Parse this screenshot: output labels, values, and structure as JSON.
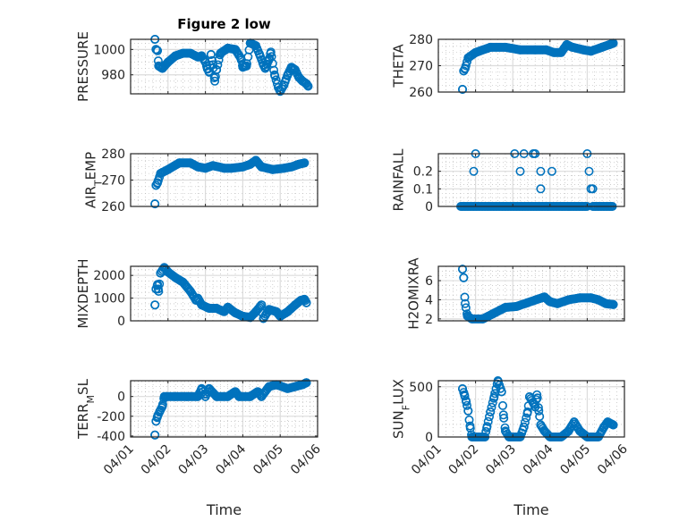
{
  "figure_title": "Figure 2 low",
  "marker_color": "#0072BD",
  "chart_data": [
    {
      "type": "scatter",
      "title": "Figure 2 low",
      "ylabel": "PRESSURE",
      "ylabel_sub": "",
      "xlabel": "",
      "x_ticks": [
        "04/01",
        "04/02",
        "04/03",
        "04/04",
        "04/05",
        "04/06"
      ],
      "show_x_ticklabels": false,
      "ylim": [
        965,
        1008
      ],
      "y_ticks": [
        980,
        1000
      ],
      "grid": true,
      "minor_grid": true,
      "points": [
        [
          0.65,
          1008
        ],
        [
          0.68,
          1000
        ],
        [
          0.72,
          999
        ],
        [
          0.75,
          987
        ],
        [
          0.85,
          985
        ],
        [
          1.0,
          990
        ],
        [
          1.2,
          995
        ],
        [
          1.4,
          997
        ],
        [
          1.6,
          997
        ],
        [
          1.8,
          994
        ],
        [
          1.9,
          995
        ],
        [
          2.0,
          990
        ],
        [
          2.05,
          985
        ],
        [
          2.1,
          982
        ],
        [
          2.15,
          996
        ],
        [
          2.2,
          988
        ],
        [
          2.25,
          975
        ],
        [
          2.3,
          984
        ],
        [
          2.4,
          997
        ],
        [
          2.6,
          1001
        ],
        [
          2.8,
          1000
        ],
        [
          2.95,
          993
        ],
        [
          3.0,
          986
        ],
        [
          3.1,
          987
        ],
        [
          3.2,
          1005
        ],
        [
          3.35,
          1003
        ],
        [
          3.45,
          996
        ],
        [
          3.55,
          988
        ],
        [
          3.6,
          985
        ],
        [
          3.7,
          992
        ],
        [
          3.75,
          998
        ],
        [
          3.85,
          980
        ],
        [
          3.95,
          970
        ],
        [
          4.0,
          967
        ],
        [
          4.1,
          972
        ],
        [
          4.2,
          980
        ],
        [
          4.3,
          986
        ],
        [
          4.4,
          984
        ],
        [
          4.5,
          978
        ],
        [
          4.6,
          975
        ],
        [
          4.7,
          973
        ],
        [
          4.75,
          971
        ]
      ]
    },
    {
      "type": "scatter",
      "ylabel": "THETA",
      "ylabel_sub": "",
      "xlabel": "",
      "x_ticks": [
        "04/01",
        "04/02",
        "04/03",
        "04/04",
        "04/05",
        "04/06"
      ],
      "show_x_ticklabels": false,
      "ylim": [
        260,
        280
      ],
      "y_ticks": [
        260,
        270,
        280
      ],
      "grid": true,
      "minor_grid": true,
      "points": [
        [
          0.65,
          261
        ],
        [
          0.68,
          268
        ],
        [
          0.72,
          269
        ],
        [
          0.8,
          273
        ],
        [
          1.0,
          275
        ],
        [
          1.4,
          277
        ],
        [
          1.8,
          277
        ],
        [
          2.2,
          276
        ],
        [
          2.6,
          276
        ],
        [
          2.9,
          276
        ],
        [
          3.1,
          275
        ],
        [
          3.3,
          275
        ],
        [
          3.45,
          278
        ],
        [
          3.6,
          277
        ],
        [
          3.9,
          276
        ],
        [
          4.1,
          275.5
        ],
        [
          4.4,
          277
        ],
        [
          4.6,
          278
        ],
        [
          4.7,
          278.5
        ]
      ]
    },
    {
      "type": "scatter",
      "ylabel": "AIR",
      "ylabel_sub": "T",
      "ylabel_rest": "EMP",
      "xlabel": "",
      "x_ticks": [
        "04/01",
        "04/02",
        "04/03",
        "04/04",
        "04/05",
        "04/06"
      ],
      "show_x_ticklabels": false,
      "ylim": [
        260,
        280
      ],
      "y_ticks": [
        260,
        270,
        280
      ],
      "grid": true,
      "minor_grid": true,
      "points": [
        [
          0.65,
          261
        ],
        [
          0.68,
          268
        ],
        [
          0.72,
          269
        ],
        [
          0.8,
          272.5
        ],
        [
          1.0,
          274
        ],
        [
          1.3,
          276.5
        ],
        [
          1.6,
          276.5
        ],
        [
          1.8,
          275
        ],
        [
          2.0,
          274.5
        ],
        [
          2.2,
          275.5
        ],
        [
          2.5,
          274.5
        ],
        [
          2.7,
          274.5
        ],
        [
          3.0,
          275
        ],
        [
          3.2,
          276
        ],
        [
          3.35,
          277.5
        ],
        [
          3.5,
          275
        ],
        [
          3.8,
          274
        ],
        [
          4.1,
          274.5
        ],
        [
          4.3,
          275
        ],
        [
          4.5,
          276
        ],
        [
          4.65,
          276.5
        ]
      ]
    },
    {
      "type": "scatter",
      "ylabel": "RAINFALL",
      "ylabel_sub": "",
      "xlabel": "",
      "x_ticks": [
        "04/01",
        "04/02",
        "04/03",
        "04/04",
        "04/05",
        "04/06"
      ],
      "show_x_ticklabels": false,
      "ylim": [
        0,
        0.3
      ],
      "y_ticks": [
        0,
        0.1,
        0.2
      ],
      "grid": true,
      "minor_grid": true,
      "points": [
        [
          1.0,
          0.3
        ],
        [
          0.95,
          0.2
        ],
        [
          2.05,
          0.3
        ],
        [
          2.3,
          0.3
        ],
        [
          2.2,
          0.2
        ],
        [
          2.55,
          0.3
        ],
        [
          2.6,
          0.3
        ],
        [
          2.75,
          0.2
        ],
        [
          2.75,
          0.1
        ],
        [
          3.05,
          0.2
        ],
        [
          4.0,
          0.3
        ],
        [
          4.05,
          0.2
        ],
        [
          4.1,
          0.1
        ],
        [
          4.15,
          0.1
        ]
      ],
      "zero_segments": [
        [
          0.6,
          4.0
        ],
        [
          4.15,
          4.7
        ]
      ]
    },
    {
      "type": "scatter",
      "ylabel": "MIXDEPTH",
      "ylabel_sub": "",
      "xlabel": "",
      "x_ticks": [
        "04/01",
        "04/02",
        "04/03",
        "04/04",
        "04/05",
        "04/06"
      ],
      "show_x_ticklabels": false,
      "ylim": [
        0,
        2400
      ],
      "y_ticks": [
        0,
        1000,
        2000
      ],
      "grid": true,
      "minor_grid": true,
      "points": [
        [
          0.65,
          700
        ],
        [
          0.68,
          1400
        ],
        [
          0.72,
          1600
        ],
        [
          0.75,
          1300
        ],
        [
          0.8,
          2100
        ],
        [
          0.9,
          2350
        ],
        [
          1.0,
          2150
        ],
        [
          1.2,
          1900
        ],
        [
          1.4,
          1700
        ],
        [
          1.6,
          1300
        ],
        [
          1.75,
          900
        ],
        [
          1.8,
          1000
        ],
        [
          1.9,
          700
        ],
        [
          2.1,
          550
        ],
        [
          2.3,
          550
        ],
        [
          2.5,
          400
        ],
        [
          2.6,
          600
        ],
        [
          2.8,
          350
        ],
        [
          3.0,
          200
        ],
        [
          3.2,
          150
        ],
        [
          3.35,
          400
        ],
        [
          3.5,
          700
        ],
        [
          3.55,
          100
        ],
        [
          3.7,
          500
        ],
        [
          3.9,
          400
        ],
        [
          4.0,
          200
        ],
        [
          4.2,
          400
        ],
        [
          4.4,
          700
        ],
        [
          4.55,
          900
        ],
        [
          4.65,
          950
        ],
        [
          4.7,
          800
        ]
      ]
    },
    {
      "type": "scatter",
      "ylabel": "H2OMIXRA",
      "ylabel_sub": "",
      "xlabel": "",
      "x_ticks": [
        "04/01",
        "04/02",
        "04/03",
        "04/04",
        "04/05",
        "04/06"
      ],
      "show_x_ticklabels": false,
      "ylim": [
        1.8,
        7.5
      ],
      "y_ticks": [
        2,
        4,
        6
      ],
      "grid": true,
      "minor_grid": true,
      "points": [
        [
          0.65,
          7.2
        ],
        [
          0.68,
          6.3
        ],
        [
          0.72,
          3.6
        ],
        [
          0.78,
          2.3
        ],
        [
          0.9,
          2.0
        ],
        [
          1.2,
          2.0
        ],
        [
          1.5,
          2.6
        ],
        [
          1.8,
          3.2
        ],
        [
          2.1,
          3.3
        ],
        [
          2.4,
          3.7
        ],
        [
          2.7,
          4.1
        ],
        [
          2.85,
          4.3
        ],
        [
          3.0,
          3.8
        ],
        [
          3.2,
          3.6
        ],
        [
          3.5,
          4.0
        ],
        [
          3.8,
          4.2
        ],
        [
          4.1,
          4.2
        ],
        [
          4.3,
          4.0
        ],
        [
          4.5,
          3.6
        ],
        [
          4.7,
          3.5
        ]
      ]
    },
    {
      "type": "scatter",
      "ylabel": "TERR",
      "ylabel_sub": "M",
      "ylabel_rest": "SL",
      "xlabel": "Time",
      "x_ticks": [
        "04/01",
        "04/02",
        "04/03",
        "04/04",
        "04/05",
        "04/06"
      ],
      "show_x_ticklabels": true,
      "ylim": [
        -410,
        160
      ],
      "y_ticks": [
        -400,
        -200,
        0
      ],
      "grid": true,
      "minor_grid": true,
      "points": [
        [
          0.65,
          -390
        ],
        [
          0.68,
          -250
        ],
        [
          0.72,
          -200
        ],
        [
          0.78,
          -150
        ],
        [
          0.85,
          -100
        ],
        [
          0.9,
          0
        ],
        [
          1.2,
          0
        ],
        [
          1.5,
          0
        ],
        [
          1.8,
          0
        ],
        [
          1.9,
          80
        ],
        [
          2.0,
          0
        ],
        [
          2.1,
          80
        ],
        [
          2.3,
          0
        ],
        [
          2.6,
          0
        ],
        [
          2.8,
          50
        ],
        [
          2.9,
          0
        ],
        [
          3.2,
          0
        ],
        [
          3.4,
          50
        ],
        [
          3.5,
          0
        ],
        [
          3.7,
          100
        ],
        [
          3.9,
          120
        ],
        [
          4.2,
          80
        ],
        [
          4.4,
          100
        ],
        [
          4.6,
          120
        ],
        [
          4.7,
          140
        ]
      ]
    },
    {
      "type": "scatter",
      "ylabel": "SUN",
      "ylabel_sub": "F",
      "ylabel_rest": "LUX",
      "xlabel": "Time",
      "x_ticks": [
        "04/01",
        "04/02",
        "04/03",
        "04/04",
        "04/05",
        "04/06"
      ],
      "show_x_ticklabels": true,
      "ylim": [
        0,
        560
      ],
      "y_ticks": [
        0,
        500
      ],
      "grid": true,
      "minor_grid": true,
      "points": [
        [
          0.65,
          480
        ],
        [
          0.7,
          420
        ],
        [
          0.75,
          350
        ],
        [
          0.8,
          260
        ],
        [
          0.85,
          110
        ],
        [
          0.9,
          0
        ],
        [
          1.0,
          0
        ],
        [
          1.25,
          0
        ],
        [
          1.3,
          90
        ],
        [
          1.4,
          250
        ],
        [
          1.5,
          400
        ],
        [
          1.6,
          560
        ],
        [
          1.7,
          450
        ],
        [
          1.75,
          220
        ],
        [
          1.8,
          60
        ],
        [
          1.9,
          0
        ],
        [
          2.2,
          0
        ],
        [
          2.3,
          100
        ],
        [
          2.4,
          250
        ],
        [
          2.45,
          400
        ],
        [
          2.55,
          340
        ],
        [
          2.6,
          300
        ],
        [
          2.65,
          420
        ],
        [
          2.7,
          260
        ],
        [
          2.75,
          120
        ],
        [
          2.85,
          60
        ],
        [
          3.0,
          0
        ],
        [
          3.3,
          0
        ],
        [
          3.5,
          60
        ],
        [
          3.65,
          150
        ],
        [
          3.8,
          60
        ],
        [
          4.0,
          0
        ],
        [
          4.3,
          0
        ],
        [
          4.45,
          100
        ],
        [
          4.55,
          150
        ],
        [
          4.7,
          120
        ]
      ]
    }
  ]
}
